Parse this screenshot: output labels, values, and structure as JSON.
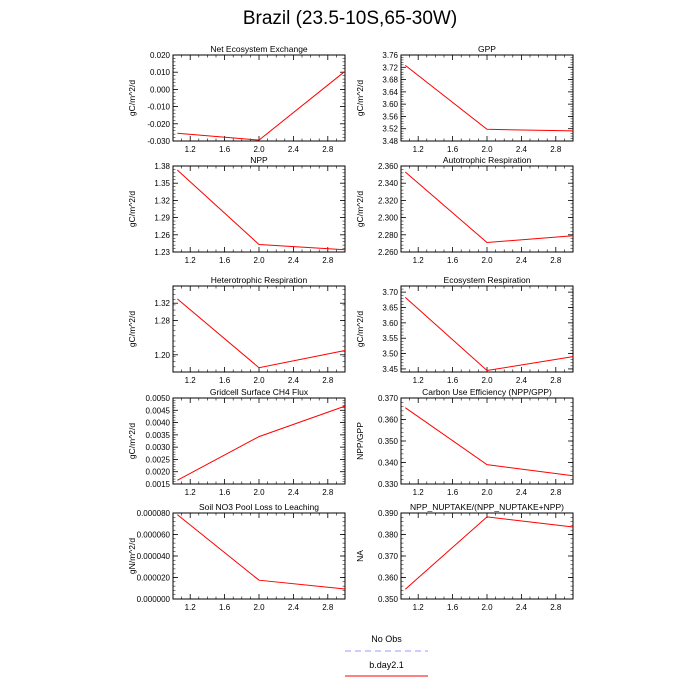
{
  "figure": {
    "title": "Brazil (23.5-10S,65-30W)",
    "legend": {
      "entries": [
        {
          "label": "No Obs",
          "color": "#9999ff",
          "style": "dashed"
        },
        {
          "label": "b.day2.1",
          "color": "#ff0000",
          "style": "solid"
        }
      ]
    }
  },
  "chart_data": [
    {
      "type": "line",
      "title": "Net Ecosystem Exchange",
      "ylabel": "gC/m^2/d",
      "xlim": [
        1.0,
        3.0
      ],
      "xticks": [
        "1.2",
        "1.6",
        "2.0",
        "2.4",
        "2.8"
      ],
      "ylim": [
        -0.03,
        0.02
      ],
      "yticks": [
        "-0.030",
        "-0.020",
        "-0.010",
        "0.000",
        "0.010",
        "0.020"
      ],
      "series": [
        {
          "name": "b.day2.1",
          "x": [
            1.05,
            2.0,
            3.0
          ],
          "y": [
            -0.0255,
            -0.0295,
            0.0105
          ]
        }
      ]
    },
    {
      "type": "line",
      "title": "GPP",
      "ylabel": "gC/m^2/d",
      "xlim": [
        1.0,
        3.0
      ],
      "xticks": [
        "1.2",
        "1.6",
        "2.0",
        "2.4",
        "2.8"
      ],
      "ylim": [
        3.48,
        3.76
      ],
      "yticks": [
        "3.48",
        "3.52",
        "3.56",
        "3.60",
        "3.64",
        "3.68",
        "3.72",
        "3.76"
      ],
      "series": [
        {
          "name": "b.day2.1",
          "x": [
            1.05,
            2.0,
            3.0
          ],
          "y": [
            3.726,
            3.518,
            3.513
          ]
        }
      ]
    },
    {
      "type": "line",
      "title": "NPP",
      "ylabel": "gC/m^2/d",
      "xlim": [
        1.0,
        3.0
      ],
      "xticks": [
        "1.2",
        "1.6",
        "2.0",
        "2.4",
        "2.8"
      ],
      "ylim": [
        1.23,
        1.38
      ],
      "yticks": [
        "1.23",
        "1.26",
        "1.29",
        "1.32",
        "1.35",
        "1.38"
      ],
      "series": [
        {
          "name": "b.day2.1",
          "x": [
            1.05,
            2.0,
            3.0
          ],
          "y": [
            1.373,
            1.243,
            1.234
          ]
        }
      ]
    },
    {
      "type": "line",
      "title": "Autotrophic Respiration",
      "ylabel": "gC/m^2/d",
      "xlim": [
        1.0,
        3.0
      ],
      "xticks": [
        "1.2",
        "1.6",
        "2.0",
        "2.4",
        "2.8"
      ],
      "ylim": [
        2.26,
        2.36
      ],
      "yticks": [
        "2.260",
        "2.280",
        "2.300",
        "2.320",
        "2.340",
        "2.360"
      ],
      "series": [
        {
          "name": "b.day2.1",
          "x": [
            1.05,
            2.0,
            3.0
          ],
          "y": [
            2.353,
            2.271,
            2.279
          ]
        }
      ]
    },
    {
      "type": "line",
      "title": "Heterotrophic Respiration",
      "ylabel": "gC/m^2/d",
      "xlim": [
        1.0,
        3.0
      ],
      "xticks": [
        "1.2",
        "1.6",
        "2.0",
        "2.4",
        "2.8"
      ],
      "ylim": [
        1.16,
        1.36
      ],
      "yticks": [
        "1.20",
        "1.28",
        "1.32"
      ],
      "series": [
        {
          "name": "b.day2.1",
          "x": [
            1.05,
            2.0,
            3.0
          ],
          "y": [
            1.33,
            1.17,
            1.21
          ]
        }
      ]
    },
    {
      "type": "line",
      "title": "Ecosystem Respiration",
      "ylabel": "gC/m^2/d",
      "xlim": [
        1.0,
        3.0
      ],
      "xticks": [
        "1.2",
        "1.6",
        "2.0",
        "2.4",
        "2.8"
      ],
      "ylim": [
        3.44,
        3.72
      ],
      "yticks": [
        "3.45",
        "3.50",
        "3.55",
        "3.60",
        "3.65",
        "3.70"
      ],
      "series": [
        {
          "name": "b.day2.1",
          "x": [
            1.05,
            2.0,
            3.0
          ],
          "y": [
            3.683,
            3.445,
            3.49
          ]
        }
      ]
    },
    {
      "type": "line",
      "title": "Gridcell Surface CH4 Flux",
      "ylabel": "gC/m^2/d",
      "xlim": [
        1.0,
        3.0
      ],
      "xticks": [
        "1.2",
        "1.6",
        "2.0",
        "2.4",
        "2.8"
      ],
      "ylim": [
        0.0015,
        0.005
      ],
      "yticks": [
        "0.0015",
        "0.0020",
        "0.0025",
        "0.0030",
        "0.0035",
        "0.0040",
        "0.0045",
        "0.0050"
      ],
      "series": [
        {
          "name": "b.day2.1",
          "x": [
            1.05,
            2.0,
            3.0
          ],
          "y": [
            0.00165,
            0.00343,
            0.00467
          ]
        }
      ]
    },
    {
      "type": "line",
      "title": "Carbon Use Efficiency (NPP/GPP)",
      "ylabel": "NPP/GPP",
      "xlim": [
        1.0,
        3.0
      ],
      "xticks": [
        "1.2",
        "1.6",
        "2.0",
        "2.4",
        "2.8"
      ],
      "ylim": [
        0.33,
        0.37
      ],
      "yticks": [
        "0.330",
        "0.340",
        "0.350",
        "0.360",
        "0.370"
      ],
      "series": [
        {
          "name": "b.day2.1",
          "x": [
            1.05,
            2.0,
            3.0
          ],
          "y": [
            0.3655,
            0.339,
            0.3338
          ]
        }
      ]
    },
    {
      "type": "line",
      "title": "Soil NO3 Pool Loss to Leaching",
      "ylabel": "gN/m^2/d",
      "xlim": [
        1.0,
        3.0
      ],
      "xticks": [
        "1.2",
        "1.6",
        "2.0",
        "2.4",
        "2.8"
      ],
      "ylim": [
        0.0,
        8e-05
      ],
      "yticks": [
        "0.000000",
        "0.000020",
        "0.000040",
        "0.000060",
        "0.000080"
      ],
      "series": [
        {
          "name": "b.day2.1",
          "x": [
            1.05,
            2.0,
            3.0
          ],
          "y": [
            7.85e-05,
            1.75e-05,
            9.3e-06
          ]
        }
      ]
    },
    {
      "type": "line",
      "title": "NPP_NUPTAKE/(NPP_NUPTAKE+NPP)",
      "ylabel": "NA",
      "xlim": [
        1.0,
        3.0
      ],
      "xticks": [
        "1.2",
        "1.6",
        "2.0",
        "2.4",
        "2.8"
      ],
      "ylim": [
        0.35,
        0.39
      ],
      "yticks": [
        "0.350",
        "0.360",
        "0.370",
        "0.380",
        "0.390"
      ],
      "series": [
        {
          "name": "b.day2.1",
          "x": [
            1.05,
            2.0,
            3.0
          ],
          "y": [
            0.3545,
            0.3882,
            0.3835
          ]
        }
      ]
    }
  ]
}
